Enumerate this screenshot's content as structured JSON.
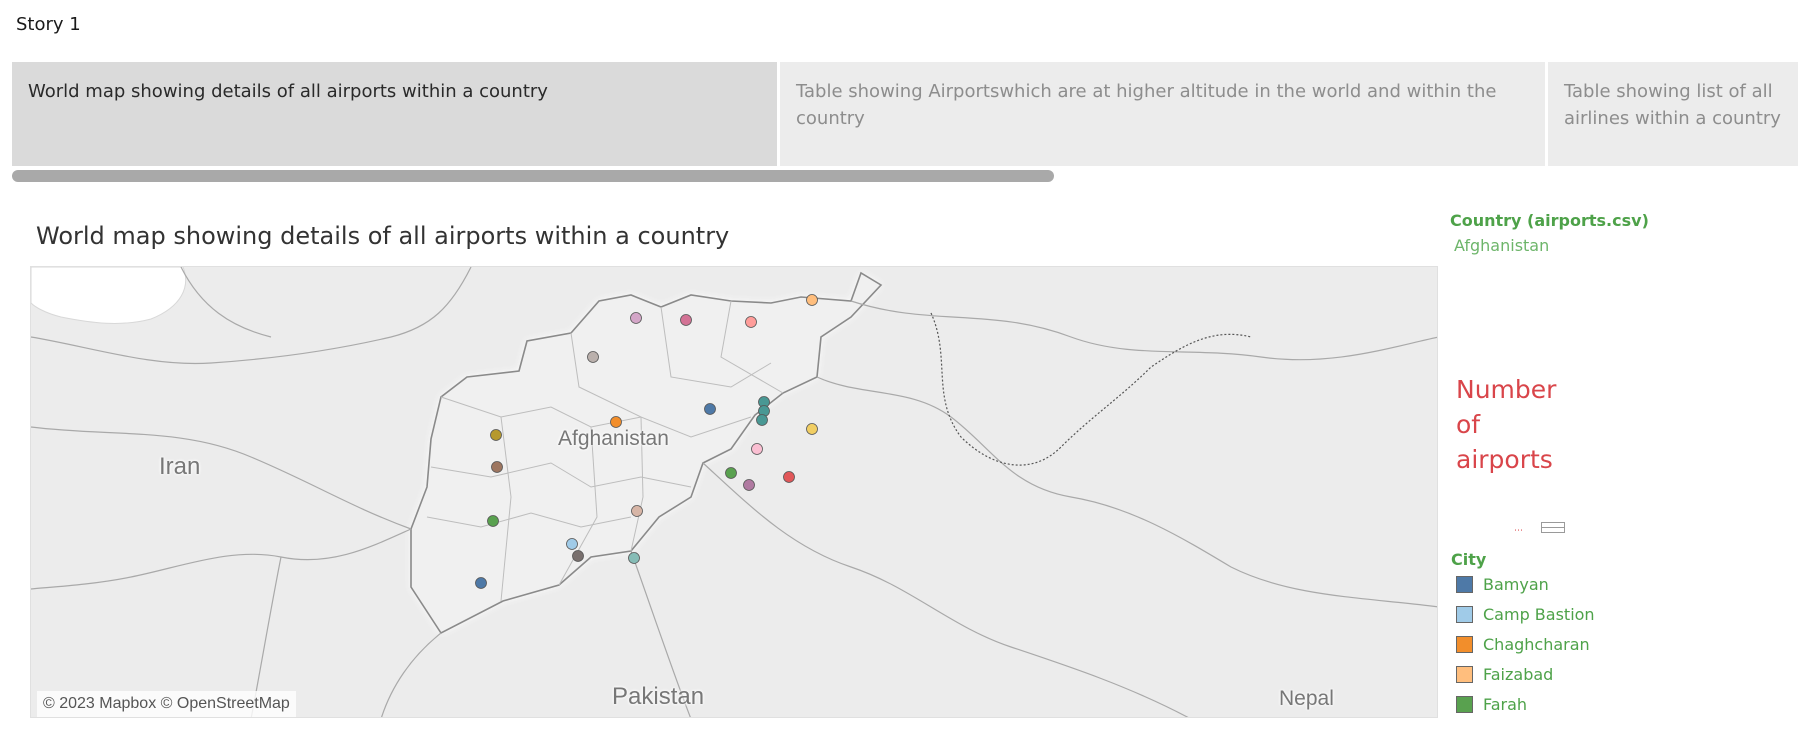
{
  "story": {
    "title": "Story 1"
  },
  "tabs": [
    {
      "label": "World map showing details of all airports within a country",
      "active": true
    },
    {
      "label": "Table showing Airportswhich are at higher altitude in the world and within  the country",
      "active": false
    },
    {
      "label": "Table showing list of all airlines within a country",
      "active": false
    }
  ],
  "viz": {
    "title": "World map showing details of all airports within a country",
    "attribution": "© 2023 Mapbox © OpenStreetMap",
    "places": [
      "Iran",
      "Afghanistan",
      "Pakistan",
      "Nepal"
    ]
  },
  "filter": {
    "title": "Country (airports.csv)",
    "value": "Afghanistan"
  },
  "size_legend": {
    "title": "Number of airports"
  },
  "city_legend": {
    "title": "City",
    "items": [
      {
        "label": "Bamyan",
        "color": "#4e79a7"
      },
      {
        "label": "Camp Bastion",
        "color": "#a0cbe8"
      },
      {
        "label": "Chaghcharan",
        "color": "#f28e2b"
      },
      {
        "label": "Faizabad",
        "color": "#ffbe7d"
      },
      {
        "label": "Farah",
        "color": "#59a14f"
      }
    ]
  },
  "airport_markers": [
    {
      "color": "#d4a6c8"
    },
    {
      "color": "#d37295"
    },
    {
      "color": "#ff9d9a"
    },
    {
      "color": "#ffbe7d"
    },
    {
      "color": "#bab0ac"
    },
    {
      "color": "#4e79a7"
    },
    {
      "color": "#499894"
    },
    {
      "color": "#499894"
    },
    {
      "color": "#499894"
    },
    {
      "color": "#f28e2b"
    },
    {
      "color": "#b6992d"
    },
    {
      "color": "#f1ce63"
    },
    {
      "color": "#fabfd2"
    },
    {
      "color": "#9d7660"
    },
    {
      "color": "#59a14f"
    },
    {
      "color": "#b07aa1"
    },
    {
      "color": "#e15759"
    },
    {
      "color": "#d7b5a6"
    },
    {
      "color": "#59a14f"
    },
    {
      "color": "#a0cbe8"
    },
    {
      "color": "#79706e"
    },
    {
      "color": "#86bcb6"
    },
    {
      "color": "#4e79a7"
    }
  ]
}
